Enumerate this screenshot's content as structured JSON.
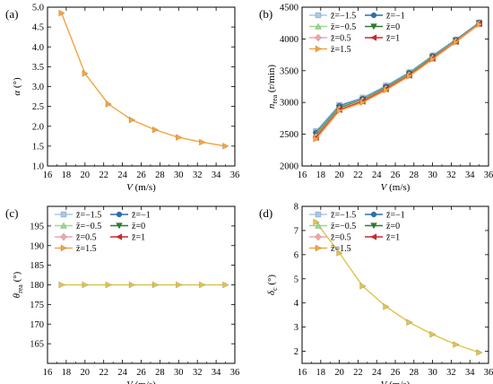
{
  "figure": {
    "legend_entries": [
      {
        "label": "z̄=−1.5",
        "color": "#a9c8ec",
        "marker": "square"
      },
      {
        "label": "z̄=−1",
        "color": "#2e6fb0",
        "marker": "circle"
      },
      {
        "label": "z̄=−0.5",
        "color": "#9ad98c",
        "marker": "triangle-up"
      },
      {
        "label": "z̄=0",
        "color": "#2e7d32",
        "marker": "triangle-down"
      },
      {
        "label": "z̄=0.5",
        "color": "#f2a5a5",
        "marker": "diamond"
      },
      {
        "label": "z̄=1",
        "color": "#d62728",
        "marker": "triangle-left"
      },
      {
        "label": "z̄=1.5",
        "color": "#f5a43c",
        "marker": "triangle-right"
      }
    ]
  },
  "chart_data": [
    {
      "panel": "(a)",
      "type": "line",
      "xlabel": "V (m/s)",
      "ylabel": "α (°)",
      "xlim": [
        16,
        36
      ],
      "xticks": [
        16,
        18,
        20,
        22,
        24,
        26,
        28,
        30,
        32,
        34,
        36
      ],
      "ylim": [
        1.0,
        5.0
      ],
      "yticks": [
        1.0,
        1.5,
        2.0,
        2.5,
        3.0,
        3.5,
        4.0,
        4.5,
        5.0
      ],
      "ytick_decimals": 1,
      "legend": false,
      "x": [
        17.5,
        20,
        22.5,
        25,
        27.5,
        30,
        32.5,
        35
      ],
      "series": [
        {
          "name": "z̄=1.5",
          "color": "#f5a43c",
          "marker": "triangle-right",
          "values": [
            4.85,
            3.33,
            2.56,
            2.16,
            1.91,
            1.72,
            1.6,
            1.5
          ]
        }
      ]
    },
    {
      "panel": "(b)",
      "type": "line",
      "xlabel": "V (m/s)",
      "ylabel": "n_rea (r/min)",
      "xlim": [
        16,
        36
      ],
      "xticks": [
        16,
        18,
        20,
        22,
        24,
        26,
        28,
        30,
        32,
        34,
        36
      ],
      "ylim": [
        2000,
        4500
      ],
      "yticks": [
        2000,
        2500,
        3000,
        3500,
        4000,
        4500
      ],
      "ytick_decimals": 0,
      "legend": true,
      "x": [
        17.5,
        20,
        22.5,
        25,
        27.5,
        30,
        32.5,
        35
      ],
      "series": [
        {
          "name": "z̄=−1.5",
          "color": "#a9c8ec",
          "marker": "square",
          "values": [
            2550,
            2960,
            3075,
            3265,
            3475,
            3740,
            3990,
            4260
          ]
        },
        {
          "name": "z̄=−1",
          "color": "#2e6fb0",
          "marker": "circle",
          "values": [
            2525,
            2945,
            3060,
            3250,
            3465,
            3730,
            3985,
            4255
          ]
        },
        {
          "name": "z̄=−0.5",
          "color": "#9ad98c",
          "marker": "triangle-up",
          "values": [
            2505,
            2930,
            3050,
            3240,
            3455,
            3720,
            3975,
            4250
          ]
        },
        {
          "name": "z̄=0",
          "color": "#2e7d32",
          "marker": "triangle-down",
          "values": [
            2485,
            2915,
            3040,
            3230,
            3445,
            3710,
            3970,
            4245
          ]
        },
        {
          "name": "z̄=0.5",
          "color": "#f2a5a5",
          "marker": "diamond",
          "values": [
            2465,
            2900,
            3030,
            3220,
            3435,
            3700,
            3965,
            4240
          ]
        },
        {
          "name": "z̄=1",
          "color": "#d62728",
          "marker": "triangle-left",
          "values": [
            2445,
            2885,
            3015,
            3210,
            3425,
            3690,
            3955,
            4235
          ]
        },
        {
          "name": "z̄=1.5",
          "color": "#f5a43c",
          "marker": "triangle-right",
          "values": [
            2425,
            2870,
            3000,
            3195,
            3415,
            3680,
            3950,
            4230
          ]
        }
      ]
    },
    {
      "panel": "(c)",
      "type": "line",
      "xlabel": "V (m/s)",
      "ylabel": "θ_rea (°)",
      "xlim": [
        16,
        36
      ],
      "xticks": [
        16,
        18,
        20,
        22,
        24,
        26,
        28,
        30,
        32,
        34,
        36
      ],
      "ylim": [
        160,
        200
      ],
      "yticks": [
        165,
        170,
        175,
        180,
        185,
        190,
        195
      ],
      "ytick_decimals": 0,
      "legend": true,
      "x": [
        17.5,
        20,
        22.5,
        25,
        27.5,
        30,
        32.5,
        35
      ],
      "series": [
        {
          "name": "z̄=1.5",
          "color": "#e0c34a",
          "marker": "triangle-right",
          "values": [
            180,
            180,
            180,
            180,
            180,
            180,
            180,
            180
          ]
        }
      ]
    },
    {
      "panel": "(d)",
      "type": "line",
      "xlabel": "V (m/s)",
      "ylabel": "δ_c (°)",
      "xlim": [
        16,
        36
      ],
      "xticks": [
        16,
        18,
        20,
        22,
        24,
        26,
        28,
        30,
        32,
        34,
        36
      ],
      "ylim": [
        1.5,
        8.0
      ],
      "yticks": [
        2,
        3,
        4,
        5,
        6,
        7,
        8
      ],
      "ytick_decimals": 0,
      "legend": true,
      "x": [
        17.5,
        20,
        22.5,
        25,
        27.5,
        30,
        32.5,
        35
      ],
      "series": [
        {
          "name": "z̄=1.5",
          "color": "#e0c34a",
          "marker": "triangle-right",
          "values": [
            7.35,
            6.07,
            4.7,
            3.85,
            3.2,
            2.7,
            2.28,
            1.95
          ]
        }
      ]
    }
  ]
}
